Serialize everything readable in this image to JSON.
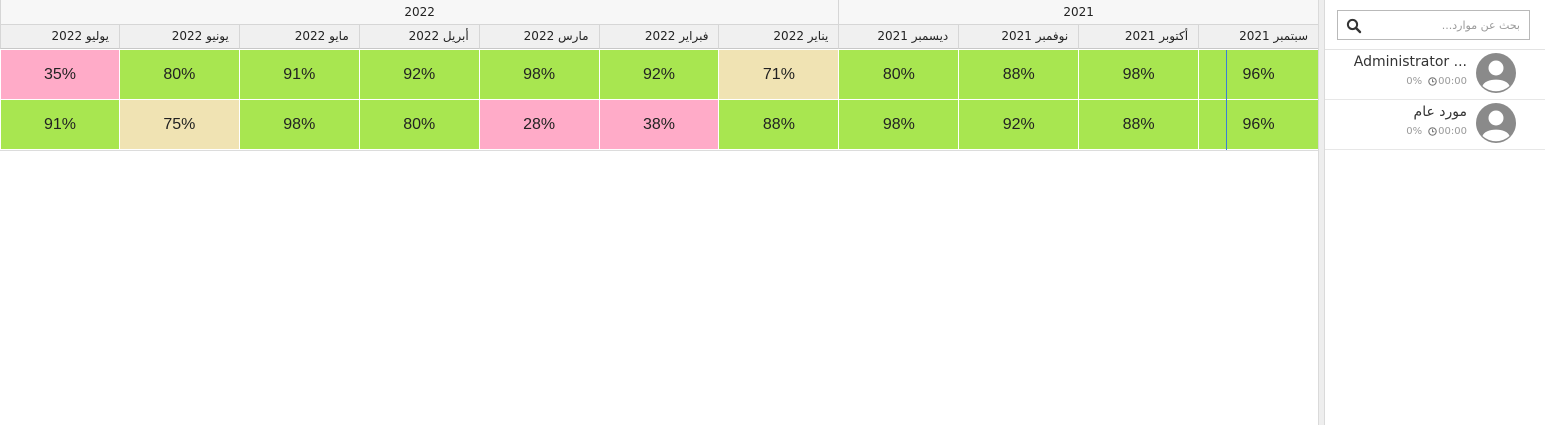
{
  "search": {
    "placeholder": "بحث عن موارد..."
  },
  "years": [
    {
      "label": "2021",
      "span": 4
    },
    {
      "label": "2022",
      "span": 7
    }
  ],
  "months": [
    "سبتمبر 2021",
    "أكتوبر 2021",
    "نوفمبر 2021",
    "ديسمبر 2021",
    "يناير 2022",
    "فبراير 2022",
    "مارس 2022",
    "أبريل 2022",
    "مايو 2022",
    "يونيو 2022",
    "يوليو 2022"
  ],
  "resources": [
    {
      "name": "Administrator ...",
      "utilization": "0%",
      "time": "00:00",
      "cells": [
        {
          "value": "96%",
          "level": "good"
        },
        {
          "value": "98%",
          "level": "good"
        },
        {
          "value": "88%",
          "level": "good"
        },
        {
          "value": "80%",
          "level": "good"
        },
        {
          "value": "71%",
          "level": "mid"
        },
        {
          "value": "92%",
          "level": "good"
        },
        {
          "value": "98%",
          "level": "good"
        },
        {
          "value": "92%",
          "level": "good"
        },
        {
          "value": "91%",
          "level": "good"
        },
        {
          "value": "80%",
          "level": "good"
        },
        {
          "value": "35%",
          "level": "bad"
        }
      ]
    },
    {
      "name": "مورد عام",
      "utilization": "0%",
      "time": "00:00",
      "cells": [
        {
          "value": "96%",
          "level": "good"
        },
        {
          "value": "88%",
          "level": "good"
        },
        {
          "value": "92%",
          "level": "good"
        },
        {
          "value": "98%",
          "level": "good"
        },
        {
          "value": "88%",
          "level": "good"
        },
        {
          "value": "38%",
          "level": "bad"
        },
        {
          "value": "28%",
          "level": "bad"
        },
        {
          "value": "80%",
          "level": "good"
        },
        {
          "value": "98%",
          "level": "good"
        },
        {
          "value": "75%",
          "level": "mid"
        },
        {
          "value": "91%",
          "level": "good"
        }
      ]
    }
  ],
  "colors": {
    "good": "#a8e650",
    "mid": "#f0e3b3",
    "bad": "#ffabc8",
    "now_line": "#3a7fd6"
  },
  "icons": {
    "search": "search-icon",
    "avatar": "user-avatar-icon",
    "clock": "clock-icon"
  }
}
